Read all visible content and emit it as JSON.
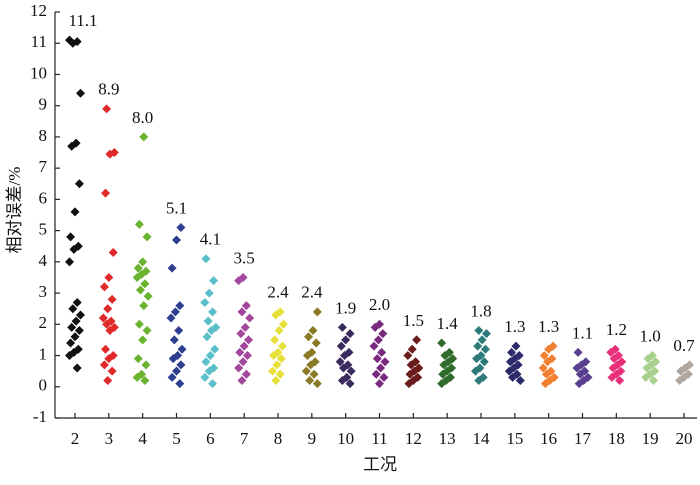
{
  "chart_data": {
    "type": "strip",
    "x_label": "工况",
    "y_label": "相对误差/%",
    "categories": [
      "2",
      "3",
      "4",
      "5",
      "6",
      "7",
      "8",
      "9",
      "10",
      "11",
      "12",
      "13",
      "14",
      "15",
      "16",
      "17",
      "18",
      "19",
      "20"
    ],
    "colors": [
      "#111111",
      "#e02a2a",
      "#6ab32e",
      "#2f3f8f",
      "#5bbfc9",
      "#a3479c",
      "#e8e03a",
      "#8a7a25",
      "#3b2a5e",
      "#7a2a7e",
      "#6a1c1c",
      "#2f6b2a",
      "#2e7a7a",
      "#2c2a6a",
      "#f08030",
      "#5a3f8f",
      "#e8307a",
      "#a8d08d",
      "#b0a8a0"
    ],
    "values": [
      [
        11.1,
        11.05,
        11.0,
        9.4,
        7.8,
        7.7,
        6.5,
        5.6,
        4.8,
        4.5,
        4.4,
        4.0,
        2.7,
        2.5,
        2.3,
        2.1,
        1.9,
        1.8,
        1.6,
        1.4,
        1.2,
        1.1,
        1.0,
        0.6
      ],
      [
        8.9,
        7.5,
        7.45,
        6.2,
        4.3,
        3.5,
        3.2,
        2.8,
        2.5,
        2.2,
        2.1,
        2.0,
        1.9,
        1.8,
        1.2,
        1.0,
        0.9,
        0.7,
        0.5,
        0.2
      ],
      [
        8.0,
        5.2,
        4.8,
        4.0,
        3.8,
        3.7,
        3.6,
        3.5,
        3.3,
        3.1,
        2.9,
        2.6,
        2.0,
        1.8,
        1.5,
        0.9,
        0.7,
        0.4,
        0.3,
        0.2
      ],
      [
        5.1,
        4.7,
        3.8,
        2.6,
        2.4,
        2.2,
        1.8,
        1.5,
        1.2,
        1.0,
        0.9,
        0.7,
        0.5,
        0.3,
        0.1
      ],
      [
        4.1,
        3.4,
        3.0,
        2.7,
        2.4,
        2.1,
        1.9,
        1.8,
        1.6,
        1.2,
        1.0,
        0.8,
        0.6,
        0.5,
        0.3,
        0.1
      ],
      [
        3.5,
        3.4,
        2.6,
        2.4,
        2.2,
        1.9,
        1.7,
        1.5,
        1.3,
        1.1,
        1.0,
        0.8,
        0.6,
        0.4,
        0.2
      ],
      [
        2.4,
        2.3,
        2.0,
        1.8,
        1.5,
        1.3,
        1.1,
        1.0,
        0.9,
        0.7,
        0.5,
        0.4,
        0.2
      ],
      [
        2.4,
        1.8,
        1.6,
        1.4,
        1.1,
        1.0,
        0.8,
        0.7,
        0.5,
        0.4,
        0.2,
        0.1
      ],
      [
        1.9,
        1.7,
        1.5,
        1.3,
        1.1,
        1.0,
        0.8,
        0.7,
        0.6,
        0.5,
        0.3,
        0.2,
        0.1
      ],
      [
        2.0,
        1.9,
        1.7,
        1.5,
        1.3,
        1.1,
        0.9,
        0.8,
        0.6,
        0.4,
        0.3,
        0.1
      ],
      [
        1.5,
        1.2,
        1.0,
        0.8,
        0.7,
        0.6,
        0.5,
        0.4,
        0.3,
        0.2,
        0.1
      ],
      [
        1.4,
        1.1,
        1.0,
        0.9,
        0.8,
        0.7,
        0.6,
        0.5,
        0.4,
        0.3,
        0.2,
        0.1
      ],
      [
        1.8,
        1.7,
        1.5,
        1.3,
        1.2,
        1.0,
        0.9,
        0.8,
        0.6,
        0.5,
        0.3,
        0.2
      ],
      [
        1.3,
        1.1,
        1.0,
        0.9,
        0.8,
        0.7,
        0.6,
        0.5,
        0.4,
        0.3,
        0.2
      ],
      [
        1.3,
        1.2,
        1.0,
        0.9,
        0.8,
        0.6,
        0.5,
        0.4,
        0.3,
        0.2,
        0.1
      ],
      [
        1.1,
        0.8,
        0.7,
        0.6,
        0.5,
        0.4,
        0.3,
        0.2,
        0.1
      ],
      [
        1.2,
        1.1,
        1.0,
        0.9,
        0.8,
        0.7,
        0.6,
        0.5,
        0.4,
        0.3,
        0.2
      ],
      [
        1.0,
        0.9,
        0.8,
        0.7,
        0.6,
        0.5,
        0.4,
        0.3,
        0.2
      ],
      [
        0.7,
        0.6,
        0.5,
        0.4,
        0.3,
        0.2
      ]
    ],
    "label_values": [
      11.1,
      8.9,
      8.0,
      5.1,
      4.1,
      3.5,
      2.4,
      2.4,
      1.9,
      2.0,
      1.5,
      1.4,
      1.8,
      1.3,
      1.3,
      1.1,
      1.2,
      1.0,
      0.7
    ],
    "value_labels": [
      "11.1",
      "8.9",
      "8.0",
      "5.1",
      "4.1",
      "3.5",
      "2.4",
      "2.4",
      "1.9",
      "2.0",
      "1.5",
      "1.4",
      "1.8",
      "1.3",
      "1.3",
      "1.1",
      "1.2",
      "1.0",
      "0.7"
    ],
    "ylim": [
      -1,
      12
    ],
    "yticks": [
      -1,
      0,
      1,
      2,
      3,
      4,
      5,
      6,
      7,
      8,
      9,
      10,
      11,
      12
    ]
  }
}
